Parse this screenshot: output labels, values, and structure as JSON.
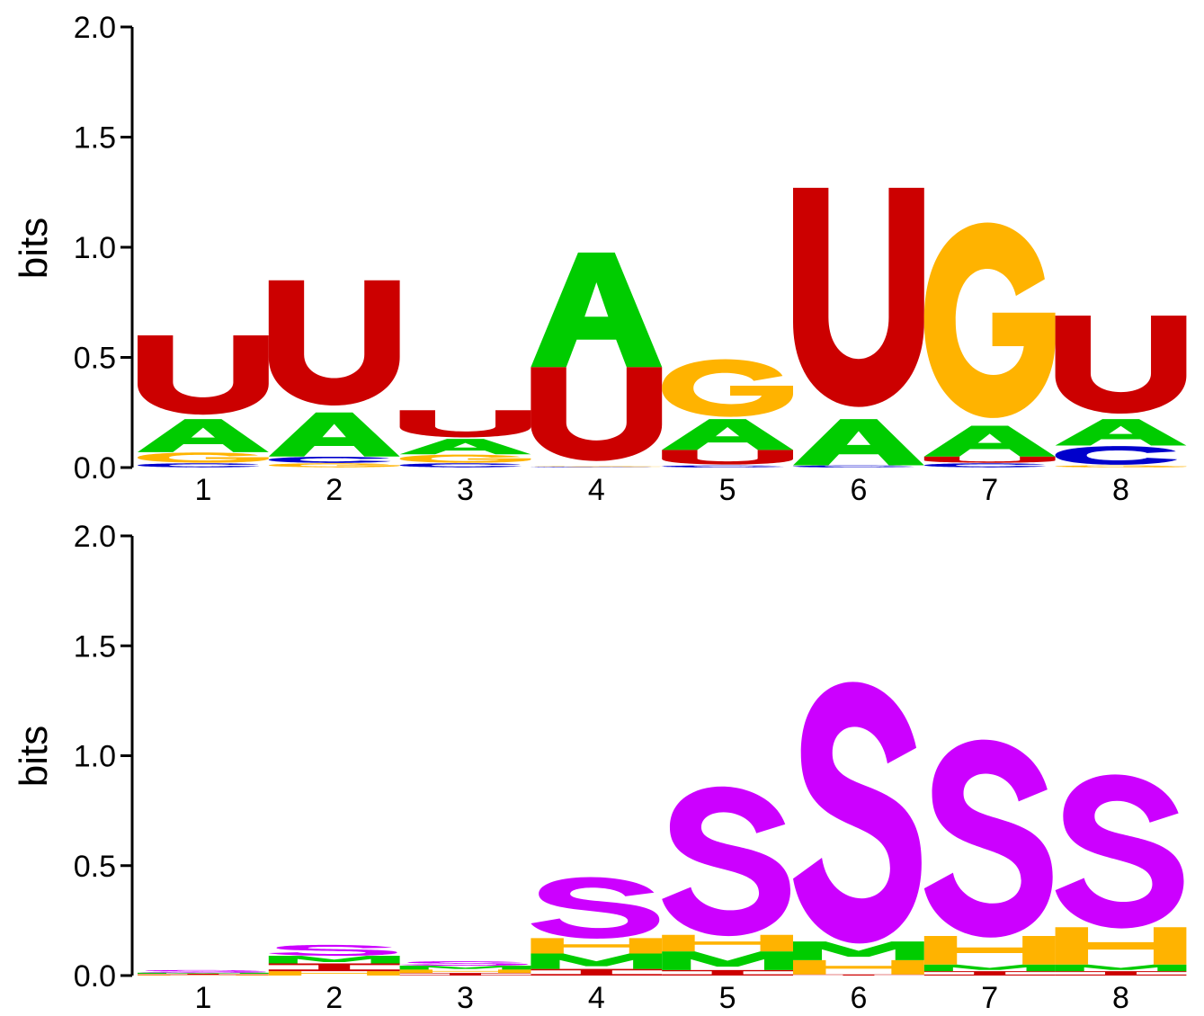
{
  "colors": {
    "A": "#00cc00",
    "C": "#0000cc",
    "G": "#ffb300",
    "U": "#cc0000",
    "S": "#cc00ff",
    "M": "#00cc00",
    "H": "#ffb300",
    "I": "#cc0000"
  },
  "chart_data": [
    {
      "type": "sequence-logo",
      "ylabel": "bits",
      "ylim": [
        0,
        2.0
      ],
      "yticks": [
        "0.0",
        "0.5",
        "1.0",
        "1.5",
        "2.0"
      ],
      "positions": [
        "1",
        "2",
        "3",
        "4",
        "5",
        "6",
        "7",
        "8"
      ],
      "stacks": [
        [
          {
            "letter": "C",
            "bits": 0.02
          },
          {
            "letter": "G",
            "bits": 0.05
          },
          {
            "letter": "A",
            "bits": 0.15
          },
          {
            "letter": "U",
            "bits": 0.38
          }
        ],
        [
          {
            "letter": "G",
            "bits": 0.02
          },
          {
            "letter": "C",
            "bits": 0.03
          },
          {
            "letter": "A",
            "bits": 0.2
          },
          {
            "letter": "U",
            "bits": 0.6
          }
        ],
        [
          {
            "letter": "C",
            "bits": 0.02
          },
          {
            "letter": "G",
            "bits": 0.04
          },
          {
            "letter": "A",
            "bits": 0.07
          },
          {
            "letter": "U",
            "bits": 0.13
          }
        ],
        [
          {
            "letter": "C",
            "bits": 0.003
          },
          {
            "letter": "G",
            "bits": 0.003
          },
          {
            "letter": "U",
            "bits": 0.45
          },
          {
            "letter": "A",
            "bits": 0.52
          }
        ],
        [
          {
            "letter": "C",
            "bits": 0.01
          },
          {
            "letter": "U",
            "bits": 0.07
          },
          {
            "letter": "A",
            "bits": 0.14
          },
          {
            "letter": "G",
            "bits": 0.28
          }
        ],
        [
          {
            "letter": "C",
            "bits": 0.01
          },
          {
            "letter": "A",
            "bits": 0.21
          },
          {
            "letter": "U",
            "bits": 1.05
          }
        ],
        [
          {
            "letter": "C",
            "bits": 0.02
          },
          {
            "letter": "U",
            "bits": 0.03
          },
          {
            "letter": "A",
            "bits": 0.14
          },
          {
            "letter": "G",
            "bits": 0.95
          }
        ],
        [
          {
            "letter": "G",
            "bits": 0.01
          },
          {
            "letter": "C",
            "bits": 0.09
          },
          {
            "letter": "A",
            "bits": 0.12
          },
          {
            "letter": "U",
            "bits": 0.47
          }
        ]
      ]
    },
    {
      "type": "sequence-logo",
      "ylabel": "bits",
      "ylim": [
        0,
        2.0
      ],
      "yticks": [
        "0.0",
        "0.5",
        "1.0",
        "1.5",
        "2.0"
      ],
      "positions": [
        "1",
        "2",
        "3",
        "4",
        "5",
        "6",
        "7",
        "8"
      ],
      "stacks": [
        [
          {
            "letter": "H",
            "bits": 0.003
          },
          {
            "letter": "I",
            "bits": 0.005
          },
          {
            "letter": "M",
            "bits": 0.005
          },
          {
            "letter": "S",
            "bits": 0.012
          }
        ],
        [
          {
            "letter": "H",
            "bits": 0.02
          },
          {
            "letter": "I",
            "bits": 0.035
          },
          {
            "letter": "M",
            "bits": 0.035
          },
          {
            "letter": "S",
            "bits": 0.05
          }
        ],
        [
          {
            "letter": "I",
            "bits": 0.012
          },
          {
            "letter": "H",
            "bits": 0.015
          },
          {
            "letter": "M",
            "bits": 0.018
          },
          {
            "letter": "S",
            "bits": 0.02
          }
        ],
        [
          {
            "letter": "I",
            "bits": 0.03
          },
          {
            "letter": "M",
            "bits": 0.07
          },
          {
            "letter": "H",
            "bits": 0.07
          },
          {
            "letter": "S",
            "bits": 0.28
          }
        ],
        [
          {
            "letter": "I",
            "bits": 0.025
          },
          {
            "letter": "M",
            "bits": 0.085
          },
          {
            "letter": "H",
            "bits": 0.075
          },
          {
            "letter": "S",
            "bits": 0.68
          }
        ],
        [
          {
            "letter": "I",
            "bits": 0.005
          },
          {
            "letter": "H",
            "bits": 0.065
          },
          {
            "letter": "M",
            "bits": 0.085
          },
          {
            "letter": "S",
            "bits": 1.19
          }
        ],
        [
          {
            "letter": "I",
            "bits": 0.02
          },
          {
            "letter": "M",
            "bits": 0.03
          },
          {
            "letter": "H",
            "bits": 0.13
          },
          {
            "letter": "S",
            "bits": 0.9
          }
        ],
        [
          {
            "letter": "I",
            "bits": 0.02
          },
          {
            "letter": "M",
            "bits": 0.03
          },
          {
            "letter": "H",
            "bits": 0.17
          },
          {
            "letter": "S",
            "bits": 0.7
          }
        ]
      ]
    }
  ]
}
